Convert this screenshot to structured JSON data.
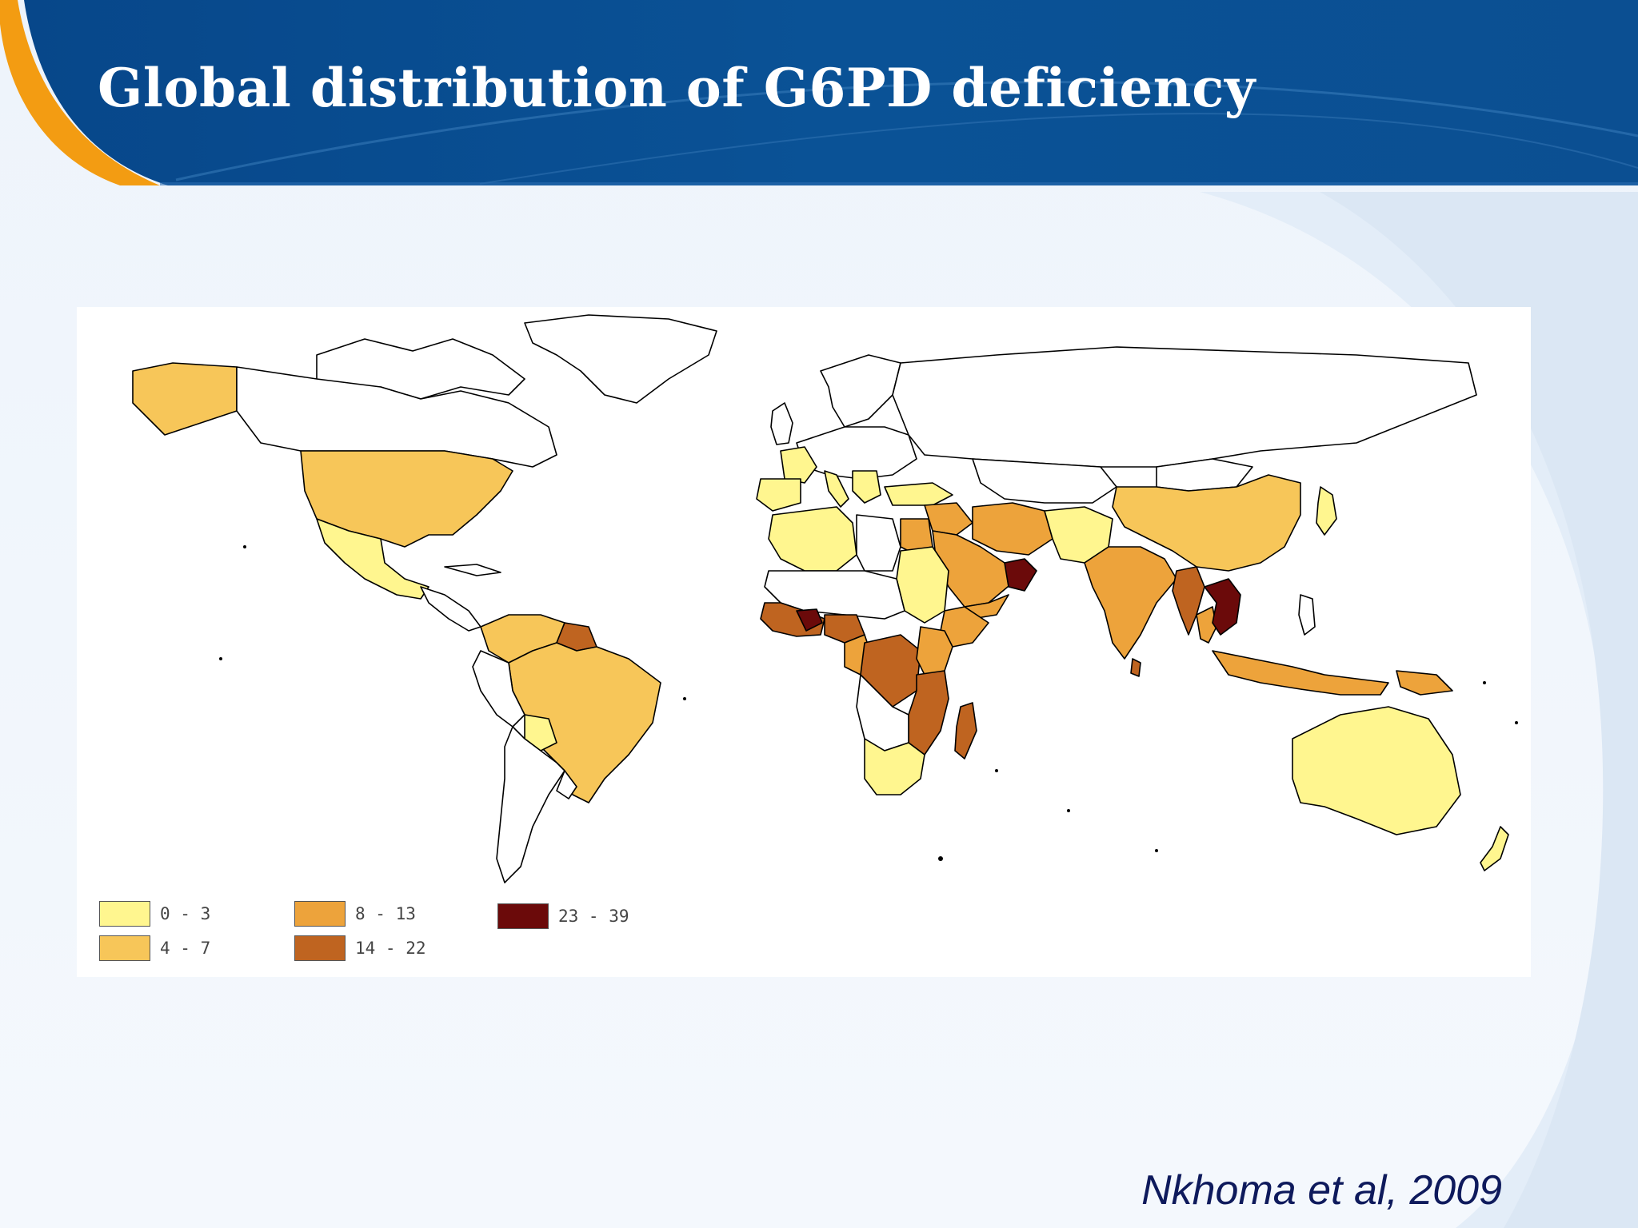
{
  "slide": {
    "title": "Global distribution of G6PD deficiency",
    "citation": "Nkhoma et al, 2009"
  },
  "colors": {
    "header_dark": "#054b8f",
    "header_light": "#1e66a8",
    "accent_orange": "#f39c12",
    "background": "#eef4fb",
    "ocean": "#ffffff",
    "country_outline": "#000000"
  },
  "legend": [
    {
      "label": "0 - 3",
      "color": "#fff68f"
    },
    {
      "label": "4 - 7",
      "color": "#f7c659"
    },
    {
      "label": "8 - 13",
      "color": "#eda33b"
    },
    {
      "label": "14 - 22",
      "color": "#bf6420"
    },
    {
      "label": "23 - 39",
      "color": "#6b0a0a"
    }
  ]
}
